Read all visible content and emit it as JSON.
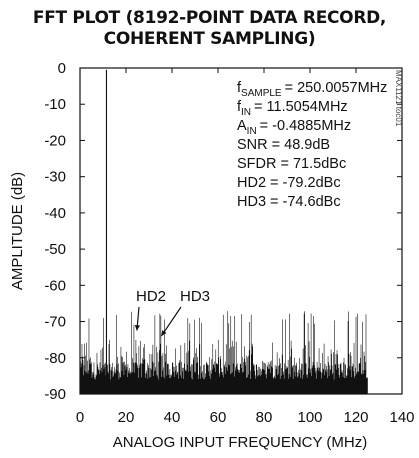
{
  "chart_data": {
    "type": "line",
    "title_line1": "FFT PLOT (8192-POINT DATA RECORD,",
    "title_line2": "COHERENT SAMPLING)",
    "xlabel": "ANALOG INPUT FREQUENCY (MHz)",
    "ylabel": "AMPLITUDE (dB)",
    "xlim": [
      0,
      140
    ],
    "ylim": [
      -90,
      0
    ],
    "x_ticks": [
      "0",
      "20",
      "40",
      "60",
      "80",
      "100",
      "120",
      "140"
    ],
    "y_ticks": [
      "0",
      "-10",
      "-20",
      "-30",
      "-40",
      "-50",
      "-60",
      "-70",
      "-80",
      "-90"
    ],
    "grid": false,
    "fundamental": {
      "x": 11.5054,
      "y": -0.4885
    },
    "noise_floor_range_db": [
      -90,
      -71
    ],
    "noise_extent_mhz": [
      0,
      125
    ],
    "harmonic_markers": [
      {
        "label": "HD2",
        "x": 23.0,
        "y": -79.2
      },
      {
        "label": "HD3",
        "x": 34.5,
        "y": -74.6
      }
    ],
    "annotations": {
      "fsample": "= 250.0057MHz",
      "fin": "= 11.5054MHz",
      "ain": "= -0.4885MHz",
      "snr": "SNR = 48.9dB",
      "sfdr": "SFDR = 71.5dBc",
      "hd2": "HD2 = -79.2dBc",
      "hd3": "HD3 = -74.6dBc"
    },
    "subscripts": {
      "fsample_base": "f",
      "fsample_sub": "SAMPLE",
      "fin_base": "f",
      "fin_sub": "IN",
      "ain_base": "A",
      "ain_sub": "IN"
    },
    "watermark": "MAX1121 toc01"
  }
}
